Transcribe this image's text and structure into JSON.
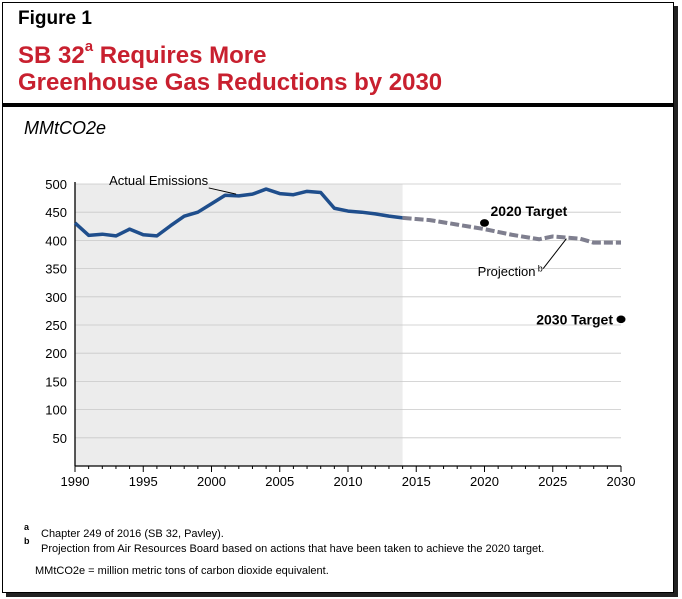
{
  "figure_label": "Figure 1",
  "title": {
    "line1_pre": "SB 32",
    "line1_sup": "a",
    "line1_post": " Requires More",
    "line2": "Greenhouse Gas Reductions by 2030"
  },
  "unit_label": "MMtCO2e",
  "chart_data": {
    "type": "line",
    "title": "SB 32a Requires More Greenhouse Gas Reductions by 2030",
    "ylabel": "MMtCO2e",
    "xlim": [
      1990,
      2030
    ],
    "ylim": [
      0,
      500
    ],
    "x_ticks": [
      1990,
      1995,
      2000,
      2005,
      2010,
      2015,
      2020,
      2025,
      2030
    ],
    "y_ticks": [
      50,
      100,
      150,
      200,
      250,
      300,
      350,
      400,
      450,
      500
    ],
    "actual_shading": [
      1990,
      2014
    ],
    "series": [
      {
        "name": "Actual Emissions",
        "style": "solid",
        "color": "#1f4e8c",
        "x": [
          1990,
          1991,
          1992,
          1993,
          1994,
          1995,
          1996,
          1997,
          1998,
          1999,
          2000,
          2001,
          2002,
          2003,
          2004,
          2005,
          2006,
          2007,
          2008,
          2009,
          2010,
          2011,
          2012,
          2013,
          2014
        ],
        "y": [
          431,
          409,
          411,
          408,
          420,
          410,
          408,
          426,
          443,
          450,
          465,
          480,
          479,
          482,
          491,
          483,
          481,
          487,
          485,
          457,
          452,
          450,
          447,
          443,
          440
        ]
      },
      {
        "name": "Projection",
        "style": "dashed",
        "color": "#7f7f8f",
        "x": [
          2014,
          2016,
          2018,
          2020,
          2022,
          2024,
          2025,
          2027,
          2028,
          2030
        ],
        "y": [
          440,
          436,
          428,
          420,
          410,
          402,
          407,
          403,
          396,
          396
        ]
      }
    ],
    "targets": [
      {
        "label": "2020 Target",
        "x": 2020,
        "y": 431
      },
      {
        "label": "2030 Target",
        "x": 2030,
        "y": 260
      }
    ],
    "annotations": {
      "actual": "Actual Emissions",
      "projection": "Projection",
      "projection_sup": "b"
    }
  },
  "footnotes": {
    "a_mark": "a",
    "a_text": "Chapter 249 of 2016 (SB 32, Pavley).",
    "b_mark": "b",
    "b_text": "Projection from Air Resources Board based on actions that have been taken to achieve the 2020 target.",
    "unit_note": "MMtCO2e = million metric tons of carbon dioxide equivalent."
  },
  "colors": {
    "title": "#c8202f",
    "actual_line": "#1f4e8c",
    "projection_line": "#7f7f8f",
    "shading": "#ececec"
  }
}
